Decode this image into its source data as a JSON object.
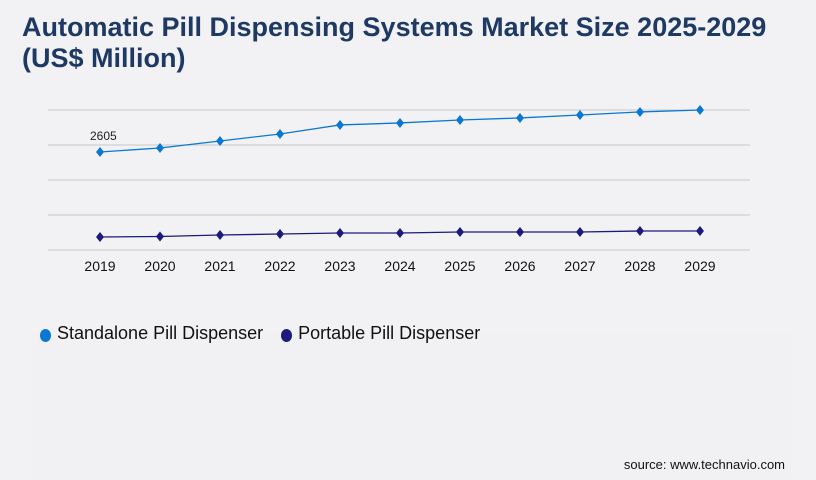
{
  "chart_data": {
    "type": "line",
    "title": "Automatic Pill Dispensing Systems Market Size 2025-2029 (US$ Million)",
    "xlabel": "",
    "ylabel": "",
    "categories": [
      "2019",
      "2020",
      "2021",
      "2022",
      "2023",
      "2024",
      "2025",
      "2026",
      "2027",
      "2028",
      "2029"
    ],
    "ylim": [
      0,
      3720
    ],
    "grid": true,
    "y_tick_labels_shown": false,
    "legend_position": "bottom-left",
    "series": [
      {
        "name": "Standalone Pill Dispenser",
        "color": "#0a78d2",
        "values": [
          2605,
          2711,
          2897,
          3083,
          3323,
          3376,
          3455,
          3509,
          3588,
          3668,
          3721
        ]
      },
      {
        "name": "Portable Pill Dispenser",
        "color": "#1c1a7a",
        "values": [
          346,
          359,
          399,
          425,
          452,
          452,
          478,
          478,
          478,
          505,
          505
        ]
      }
    ],
    "annotations": [
      {
        "series": 0,
        "index": 0,
        "text": "2605"
      }
    ]
  },
  "source": "source: www.technavio.com"
}
